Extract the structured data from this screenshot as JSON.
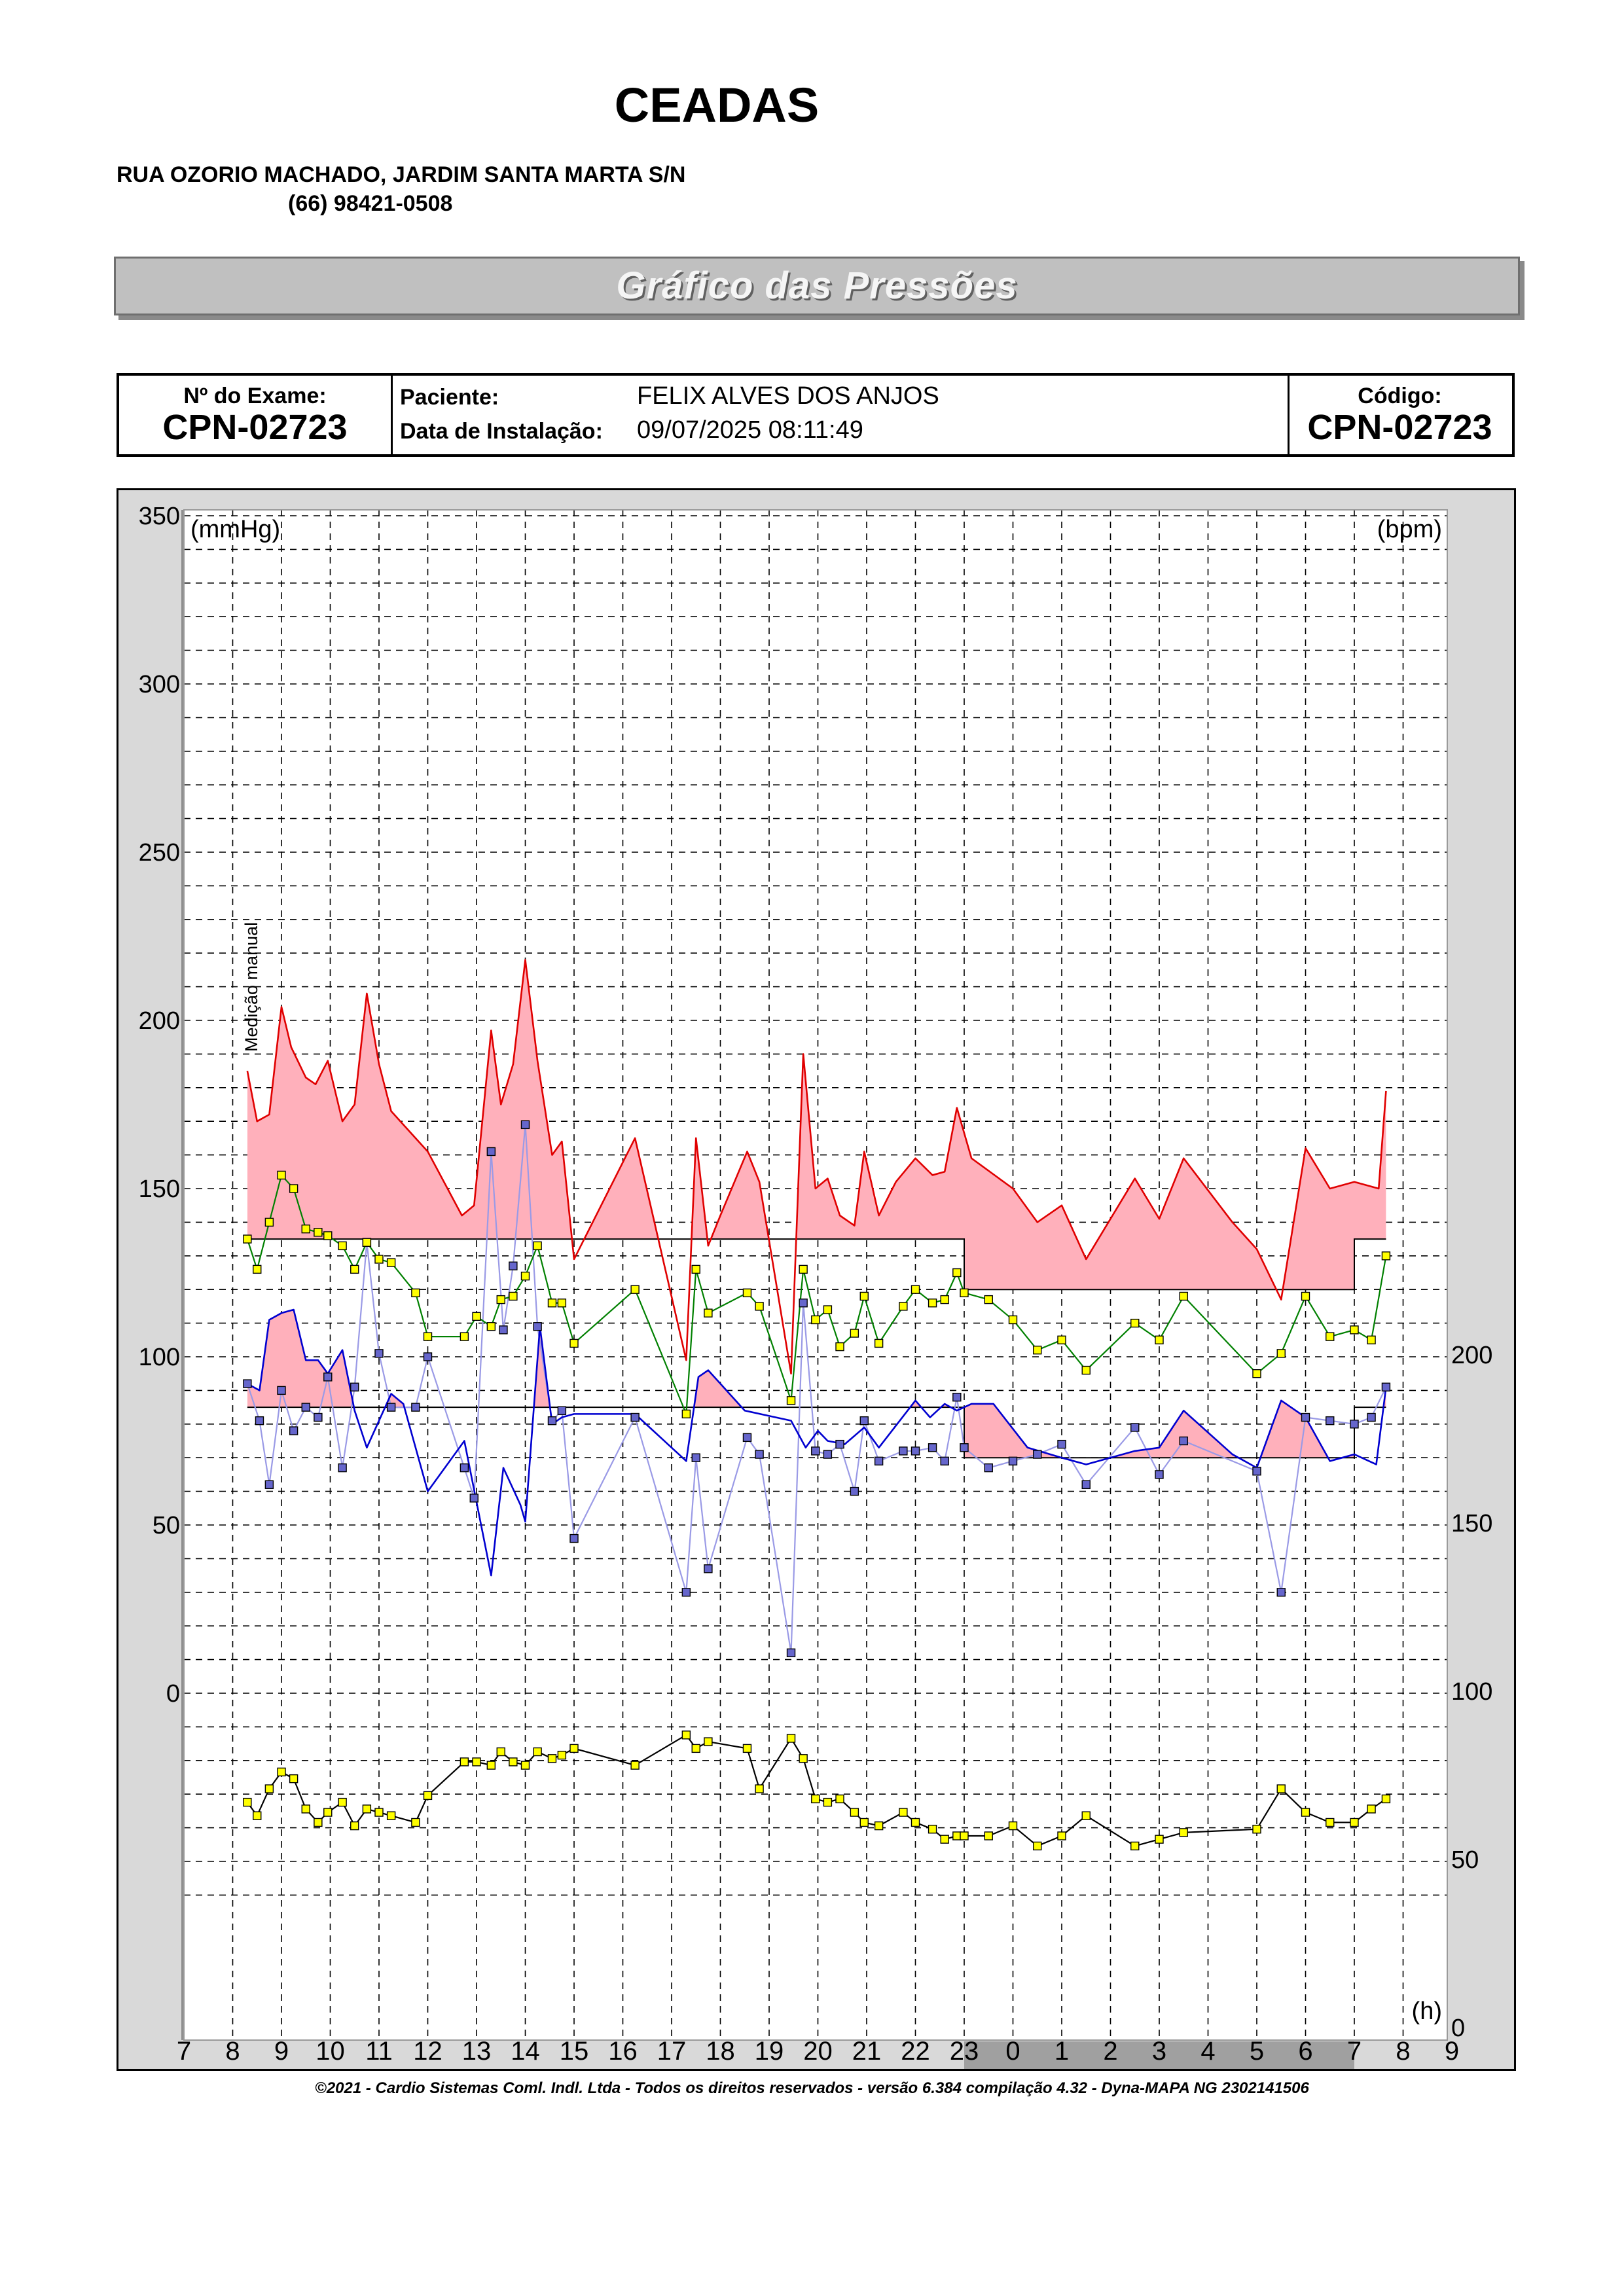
{
  "header": {
    "clinic_name": "CEADAS",
    "address": "RUA OZORIO MACHADO, JARDIM SANTA MARTA S/N",
    "phone": "(66) 98421-0508"
  },
  "banner": {
    "title": "Gráfico das Pressões"
  },
  "info": {
    "exam_label": "Nº do Exame:",
    "exam_number": "CPN-02723",
    "patient_label": "Paciente:",
    "patient_name": "FELIX ALVES DOS  ANJOS",
    "install_label": "Data de Instalação:",
    "install_datetime": "09/07/2025 08:11:49",
    "code_label": "Código:",
    "code": "CPN-02723"
  },
  "footer": {
    "copyright": "©2021 - Cardio Sistemas Coml. Indl. Ltda - Todos os direitos reservados - versão 6.384 compilação 4.32 - Dyna-MAPA NG 2302141506"
  },
  "colors": {
    "systolic": "#e00000",
    "diastolic": "#0000d0",
    "mean": "#008000",
    "heart_rate": "#000000",
    "overload_fill": "#ffb0bb",
    "marker_yellow": "#ffff00",
    "marker_blue": "#6666cc",
    "manual_line": "#9a9ae6",
    "night_band": "#a0a0a0"
  },
  "chart_data": {
    "type": "line",
    "left_unit": "(mmHg)",
    "right_unit": "(bpm)",
    "time_unit": "(h)",
    "manual_label": "Medição manual",
    "ylim_left": [
      0,
      350
    ],
    "ytick_left": [
      "350",
      "300",
      "250",
      "200",
      "150",
      "100",
      "50",
      "0"
    ],
    "ytick_right": [
      "200",
      "150",
      "100",
      "50",
      "0"
    ],
    "x_tick_labels": [
      "7",
      "8",
      "9",
      "10",
      "11",
      "12",
      "13",
      "14",
      "15",
      "16",
      "17",
      "18",
      "19",
      "20",
      "21",
      "22",
      "23",
      "0",
      "1",
      "2",
      "3",
      "4",
      "5",
      "6",
      "7",
      "8",
      "9"
    ],
    "night_period": [
      23,
      31
    ],
    "systolic_limits": {
      "day": 135,
      "night": 120,
      "night_from": 23,
      "night_to": 31
    },
    "diastolic_limits": {
      "day": 85,
      "night": 70,
      "night_from": 23,
      "night_to": 31
    },
    "systolic": [
      [
        8.3,
        185
      ],
      [
        8.5,
        170
      ],
      [
        8.75,
        172
      ],
      [
        9.0,
        204
      ],
      [
        9.2,
        192
      ],
      [
        9.5,
        183
      ],
      [
        9.7,
        181
      ],
      [
        9.95,
        188
      ],
      [
        10.25,
        170
      ],
      [
        10.5,
        175
      ],
      [
        10.75,
        208
      ],
      [
        11.0,
        187
      ],
      [
        11.25,
        173
      ],
      [
        11.5,
        169
      ],
      [
        12.0,
        161
      ],
      [
        12.7,
        142
      ],
      [
        12.95,
        145
      ],
      [
        13.3,
        197
      ],
      [
        13.5,
        175
      ],
      [
        13.75,
        187
      ],
      [
        14.0,
        218
      ],
      [
        14.25,
        188
      ],
      [
        14.55,
        160
      ],
      [
        14.75,
        164
      ],
      [
        15.0,
        129
      ],
      [
        16.25,
        165
      ],
      [
        17.3,
        99
      ],
      [
        17.5,
        165
      ],
      [
        17.75,
        133
      ],
      [
        18.0,
        142
      ],
      [
        18.55,
        161
      ],
      [
        18.8,
        152
      ],
      [
        19.45,
        95
      ],
      [
        19.7,
        190
      ],
      [
        19.95,
        150
      ],
      [
        20.2,
        153
      ],
      [
        20.45,
        142
      ],
      [
        20.75,
        139
      ],
      [
        20.95,
        161
      ],
      [
        21.25,
        142
      ],
      [
        21.6,
        152
      ],
      [
        22.0,
        159
      ],
      [
        22.35,
        154
      ],
      [
        22.6,
        155
      ],
      [
        22.85,
        174
      ],
      [
        23.15,
        159
      ],
      [
        24.0,
        150
      ],
      [
        24.5,
        140
      ],
      [
        25.0,
        145
      ],
      [
        25.5,
        129
      ],
      [
        26.5,
        153
      ],
      [
        27.0,
        141
      ],
      [
        27.5,
        159
      ],
      [
        28.5,
        140
      ],
      [
        29.0,
        132
      ],
      [
        29.5,
        117
      ],
      [
        30.0,
        162
      ],
      [
        30.5,
        150
      ],
      [
        31.0,
        152
      ],
      [
        31.5,
        150
      ],
      [
        31.65,
        179
      ]
    ],
    "diastolic": [
      [
        8.3,
        92
      ],
      [
        8.55,
        90
      ],
      [
        8.75,
        111
      ],
      [
        9.0,
        113
      ],
      [
        9.25,
        114
      ],
      [
        9.5,
        99
      ],
      [
        9.75,
        99
      ],
      [
        9.95,
        95
      ],
      [
        10.25,
        102
      ],
      [
        10.5,
        84
      ],
      [
        10.75,
        73
      ],
      [
        11.25,
        89
      ],
      [
        11.5,
        86
      ],
      [
        12.0,
        60
      ],
      [
        12.75,
        75
      ],
      [
        13.3,
        35
      ],
      [
        13.55,
        67
      ],
      [
        13.9,
        56
      ],
      [
        14.0,
        51
      ],
      [
        14.3,
        109
      ],
      [
        14.55,
        80
      ],
      [
        14.75,
        82
      ],
      [
        15.0,
        83
      ],
      [
        16.25,
        83
      ],
      [
        17.3,
        69
      ],
      [
        17.55,
        94
      ],
      [
        17.75,
        96
      ],
      [
        18.5,
        84
      ],
      [
        19.45,
        81
      ],
      [
        19.75,
        73
      ],
      [
        20.0,
        78
      ],
      [
        20.2,
        75
      ],
      [
        20.55,
        74
      ],
      [
        20.95,
        79
      ],
      [
        21.25,
        73
      ],
      [
        22.0,
        87
      ],
      [
        22.3,
        82
      ],
      [
        22.6,
        86
      ],
      [
        22.85,
        84
      ],
      [
        23.15,
        86
      ],
      [
        23.6,
        86
      ],
      [
        24.3,
        73
      ],
      [
        25.0,
        70
      ],
      [
        25.5,
        68
      ],
      [
        26.5,
        72
      ],
      [
        27.0,
        73
      ],
      [
        27.5,
        84
      ],
      [
        28.5,
        71
      ],
      [
        29.0,
        67
      ],
      [
        29.5,
        87
      ],
      [
        30.0,
        82
      ],
      [
        30.5,
        69
      ],
      [
        31.0,
        71
      ],
      [
        31.45,
        68
      ],
      [
        31.65,
        91
      ]
    ],
    "mean": [
      [
        8.3,
        135
      ],
      [
        8.5,
        126
      ],
      [
        8.75,
        140
      ],
      [
        9.0,
        154
      ],
      [
        9.25,
        150
      ],
      [
        9.5,
        138
      ],
      [
        9.75,
        137
      ],
      [
        9.95,
        136
      ],
      [
        10.25,
        133
      ],
      [
        10.5,
        126
      ],
      [
        10.75,
        134
      ],
      [
        11.0,
        129
      ],
      [
        11.25,
        128
      ],
      [
        11.75,
        119
      ],
      [
        12.0,
        106
      ],
      [
        12.75,
        106
      ],
      [
        13.0,
        112
      ],
      [
        13.3,
        109
      ],
      [
        13.5,
        117
      ],
      [
        13.75,
        118
      ],
      [
        14.0,
        124
      ],
      [
        14.25,
        133
      ],
      [
        14.55,
        116
      ],
      [
        14.75,
        116
      ],
      [
        15.0,
        104
      ],
      [
        16.25,
        120
      ],
      [
        17.3,
        83
      ],
      [
        17.5,
        126
      ],
      [
        17.75,
        113
      ],
      [
        18.55,
        119
      ],
      [
        18.8,
        115
      ],
      [
        19.45,
        87
      ],
      [
        19.7,
        126
      ],
      [
        19.95,
        111
      ],
      [
        20.2,
        114
      ],
      [
        20.45,
        103
      ],
      [
        20.75,
        107
      ],
      [
        20.95,
        118
      ],
      [
        21.25,
        104
      ],
      [
        21.75,
        115
      ],
      [
        22.0,
        120
      ],
      [
        22.35,
        116
      ],
      [
        22.6,
        117
      ],
      [
        22.85,
        125
      ],
      [
        23.0,
        119
      ],
      [
        23.5,
        117
      ],
      [
        24.0,
        111
      ],
      [
        24.5,
        102
      ],
      [
        25.0,
        105
      ],
      [
        25.5,
        96
      ],
      [
        26.5,
        110
      ],
      [
        27.0,
        105
      ],
      [
        27.5,
        118
      ],
      [
        29.0,
        95
      ],
      [
        29.5,
        101
      ],
      [
        30.0,
        118
      ],
      [
        30.5,
        106
      ],
      [
        31.0,
        108
      ],
      [
        31.35,
        105
      ],
      [
        31.65,
        130
      ]
    ],
    "manual_diastolic": [
      [
        8.3,
        92
      ],
      [
        8.55,
        81
      ],
      [
        8.75,
        62
      ],
      [
        9.0,
        90
      ],
      [
        9.25,
        78
      ],
      [
        9.5,
        85
      ],
      [
        9.75,
        82
      ],
      [
        9.95,
        94
      ],
      [
        10.25,
        67
      ],
      [
        10.5,
        91
      ],
      [
        10.75,
        134
      ],
      [
        11.0,
        101
      ],
      [
        11.25,
        85
      ],
      [
        11.75,
        85
      ],
      [
        12.0,
        100
      ],
      [
        12.75,
        67
      ],
      [
        12.95,
        58
      ],
      [
        13.3,
        161
      ],
      [
        13.55,
        108
      ],
      [
        13.75,
        127
      ],
      [
        14.0,
        169
      ],
      [
        14.25,
        109
      ],
      [
        14.55,
        81
      ],
      [
        14.75,
        84
      ],
      [
        15.0,
        46
      ],
      [
        16.25,
        82
      ],
      [
        17.3,
        30
      ],
      [
        17.5,
        70
      ],
      [
        17.75,
        37
      ],
      [
        18.55,
        76
      ],
      [
        18.8,
        71
      ],
      [
        19.45,
        12
      ],
      [
        19.7,
        116
      ],
      [
        19.95,
        72
      ],
      [
        20.2,
        71
      ],
      [
        20.45,
        74
      ],
      [
        20.75,
        60
      ],
      [
        20.95,
        81
      ],
      [
        21.25,
        69
      ],
      [
        21.75,
        72
      ],
      [
        22.0,
        72
      ],
      [
        22.35,
        73
      ],
      [
        22.6,
        69
      ],
      [
        22.85,
        88
      ],
      [
        23.0,
        73
      ],
      [
        23.5,
        67
      ],
      [
        24.0,
        69
      ],
      [
        24.5,
        71
      ],
      [
        25.0,
        74
      ],
      [
        25.5,
        62
      ],
      [
        26.5,
        79
      ],
      [
        27.0,
        65
      ],
      [
        27.5,
        75
      ],
      [
        29.0,
        66
      ],
      [
        29.5,
        30
      ],
      [
        30.0,
        82
      ],
      [
        30.5,
        81
      ],
      [
        31.0,
        80
      ],
      [
        31.35,
        82
      ],
      [
        31.65,
        91
      ]
    ],
    "heart_rate": [
      [
        8.3,
        67
      ],
      [
        8.5,
        63
      ],
      [
        8.75,
        71
      ],
      [
        9.0,
        76
      ],
      [
        9.25,
        74
      ],
      [
        9.5,
        65
      ],
      [
        9.75,
        61
      ],
      [
        9.95,
        64
      ],
      [
        10.25,
        67
      ],
      [
        10.5,
        60
      ],
      [
        10.75,
        65
      ],
      [
        11.0,
        64
      ],
      [
        11.25,
        63
      ],
      [
        11.75,
        61
      ],
      [
        12.0,
        69
      ],
      [
        12.75,
        79
      ],
      [
        13.0,
        79
      ],
      [
        13.3,
        78
      ],
      [
        13.5,
        82
      ],
      [
        13.75,
        79
      ],
      [
        14.0,
        78
      ],
      [
        14.25,
        82
      ],
      [
        14.55,
        80
      ],
      [
        14.75,
        81
      ],
      [
        15.0,
        83
      ],
      [
        16.25,
        78
      ],
      [
        17.3,
        87
      ],
      [
        17.5,
        83
      ],
      [
        17.75,
        85
      ],
      [
        18.55,
        83
      ],
      [
        18.8,
        71
      ],
      [
        19.45,
        86
      ],
      [
        19.7,
        80
      ],
      [
        19.95,
        68
      ],
      [
        20.2,
        67
      ],
      [
        20.45,
        68
      ],
      [
        20.75,
        64
      ],
      [
        20.95,
        61
      ],
      [
        21.25,
        60
      ],
      [
        21.75,
        64
      ],
      [
        22.0,
        61
      ],
      [
        22.35,
        59
      ],
      [
        22.6,
        56
      ],
      [
        22.85,
        57
      ],
      [
        23.0,
        57
      ],
      [
        23.5,
        57
      ],
      [
        24.0,
        60
      ],
      [
        24.5,
        54
      ],
      [
        25.0,
        57
      ],
      [
        25.5,
        63
      ],
      [
        26.5,
        54
      ],
      [
        27.0,
        56
      ],
      [
        27.5,
        58
      ],
      [
        29.0,
        59
      ],
      [
        29.5,
        71
      ],
      [
        30.0,
        64
      ],
      [
        30.5,
        61
      ],
      [
        31.0,
        61
      ],
      [
        31.35,
        65
      ],
      [
        31.65,
        68
      ]
    ]
  }
}
